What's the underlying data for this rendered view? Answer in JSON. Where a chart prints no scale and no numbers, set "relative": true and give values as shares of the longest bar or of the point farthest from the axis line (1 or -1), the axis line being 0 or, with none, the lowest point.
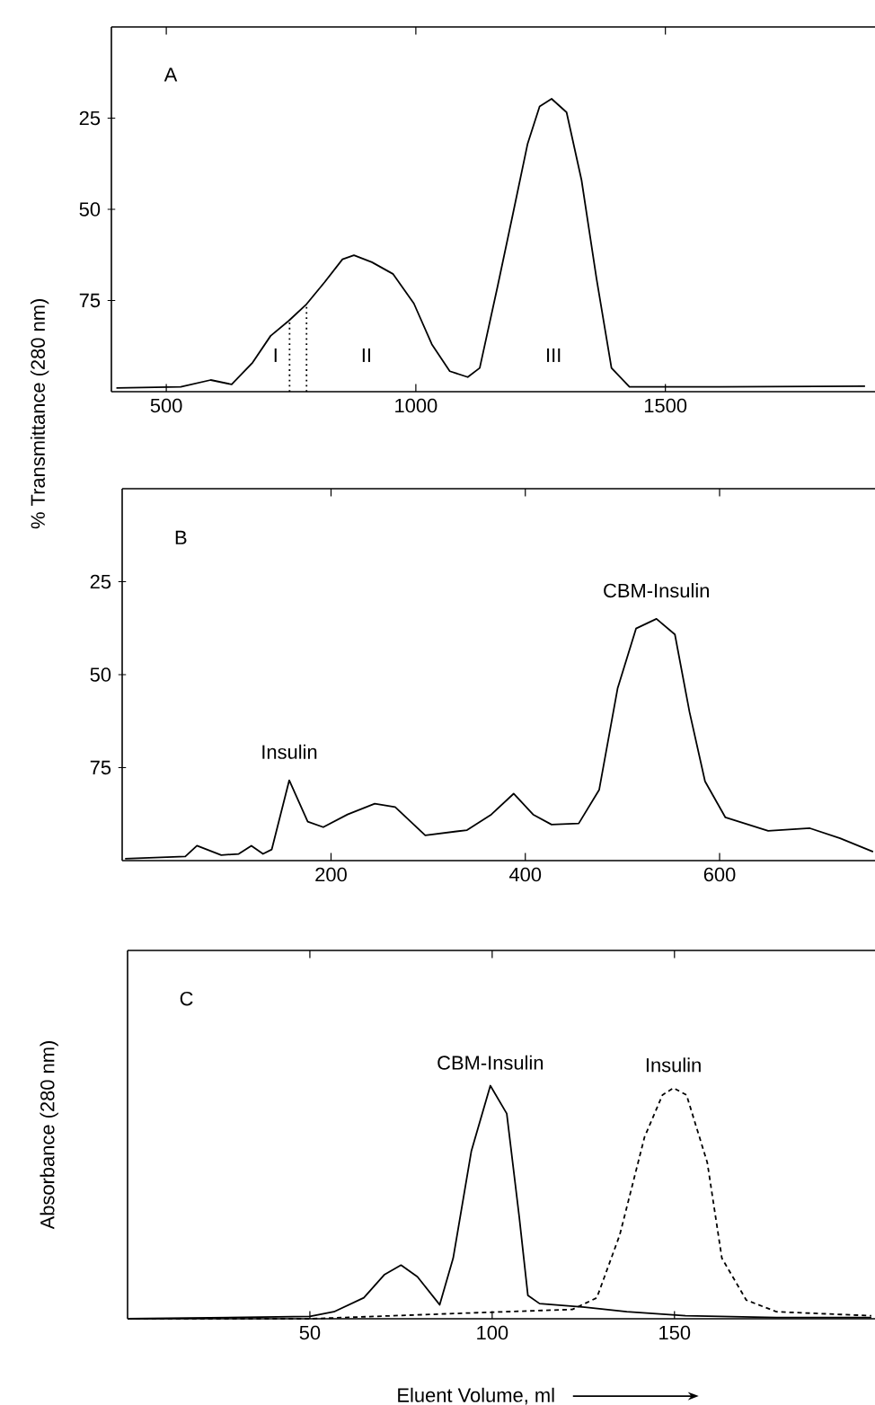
{
  "chart_data": [
    {
      "type": "line",
      "title": "A",
      "ylabel": "% Transmittance (280 nm)",
      "xlim": [
        390,
        1920
      ],
      "ylim": [
        100,
        0
      ],
      "xticks": [
        500,
        1000,
        1500
      ],
      "yticks": [
        25,
        50,
        75
      ],
      "series": [
        {
          "color": "#000000",
          "x": [
            400,
            529,
            589,
            631,
            673,
            709,
            745,
            781,
            817,
            853,
            876,
            912,
            954,
            996,
            1032,
            1068,
            1104,
            1128,
            1164,
            1194,
            1224,
            1248,
            1272,
            1302,
            1332,
            1362,
            1392,
            1428,
            1608,
            1900
          ],
          "values": [
            99,
            98.7,
            96.8,
            98,
            92,
            84.7,
            80.6,
            76,
            70,
            63.7,
            62.6,
            64.5,
            67.7,
            75.8,
            87,
            94.4,
            96,
            93.5,
            71,
            51.6,
            32,
            21.8,
            19.7,
            23.4,
            42,
            69,
            93.5,
            98.7,
            98.7,
            98.5
          ]
        },
        {
          "type": "line",
          "line_style": "dotted",
          "color": "#000000",
          "x": [
            747,
            747
          ],
          "values": [
            100,
            80.6
          ]
        },
        {
          "type": "line",
          "line_style": "dotted",
          "color": "#000000",
          "x": [
            781,
            781
          ],
          "values": [
            100,
            76
          ]
        }
      ],
      "annotations": [
        "I",
        "II",
        "III"
      ]
    },
    {
      "type": "line",
      "title": "B",
      "xlim": [
        -15,
        760
      ],
      "ylim": [
        100,
        0
      ],
      "xticks": [
        200,
        400,
        600
      ],
      "yticks": [
        25,
        50,
        75
      ],
      "series": [
        {
          "color": "#000000",
          "x": [
            -12,
            50,
            62,
            87,
            105,
            118,
            130,
            139,
            157,
            176,
            192,
            217,
            245,
            266,
            297,
            340,
            365,
            388,
            408,
            427,
            455,
            476,
            495,
            514,
            535,
            554,
            569,
            585,
            606,
            650,
            693,
            724,
            758
          ],
          "values": [
            99.5,
            98.9,
            96,
            98.5,
            98.2,
            96,
            98.2,
            97,
            78.4,
            89.5,
            91,
            87.6,
            84.7,
            85.6,
            93.2,
            91.8,
            87.6,
            82,
            87.6,
            90.3,
            90,
            81,
            53.7,
            37.6,
            35,
            39.2,
            60,
            78.7,
            88.4,
            92,
            91.3,
            94,
            97.6
          ]
        }
      ],
      "annotations": [
        {
          "text": "Insulin",
          "x": 157,
          "y": 78.4
        },
        {
          "text": "CBM-Insulin",
          "x": 535,
          "y": 35
        }
      ]
    },
    {
      "type": "line",
      "title": "C",
      "ylabel": "Absorbance (280 nm)",
      "xlabel": "Eluent Volume, ml",
      "relative": true,
      "xlim": [
        0,
        205
      ],
      "xticks": [
        50,
        100,
        150
      ],
      "series": [
        {
          "name": "CBM-Insulin",
          "color": "#000000",
          "line_style": "solid",
          "x": [
            0,
            50,
            56.6,
            64.8,
            70.5,
            75,
            79.5,
            85.6,
            89.3,
            94.3,
            99.5,
            104,
            107.4,
            109.8,
            113,
            125.4,
            136.9,
            153,
            178,
            204
          ],
          "values": [
            0,
            0.01,
            0.03,
            0.09,
            0.19,
            0.23,
            0.18,
            0.06,
            0.26,
            0.72,
            1,
            0.88,
            0.44,
            0.1,
            0.065,
            0.05,
            0.03,
            0.013,
            0.005,
            0.005
          ]
        },
        {
          "name": "Insulin",
          "color": "#000000",
          "line_style": "dashed",
          "x": [
            0,
            50,
            96,
            122,
            128.7,
            135,
            141.8,
            146.7,
            149.7,
            153.3,
            159,
            163,
            169.7,
            178,
            204
          ],
          "values": [
            0,
            0,
            0.026,
            0.04,
            0.09,
            0.36,
            0.78,
            0.96,
            0.99,
            0.96,
            0.67,
            0.26,
            0.08,
            0.03,
            0.013
          ]
        }
      ]
    }
  ]
}
